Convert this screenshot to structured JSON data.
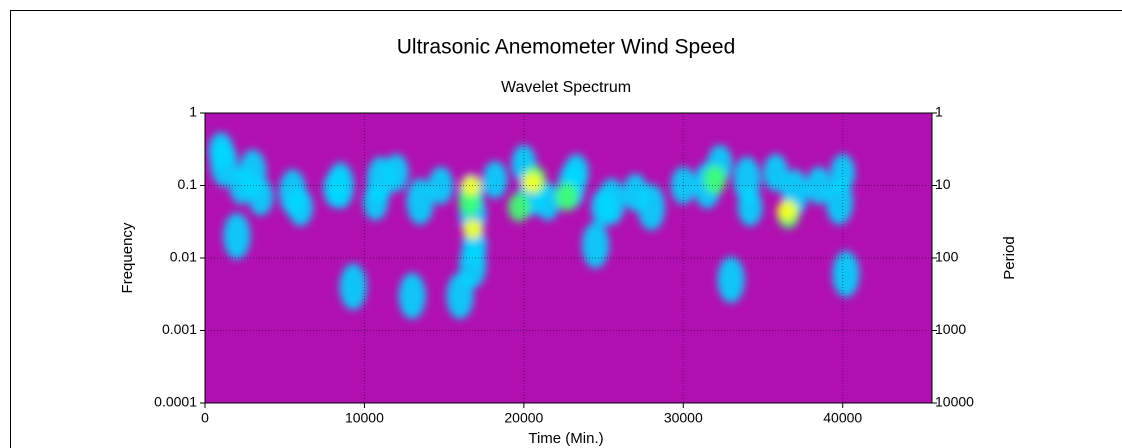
{
  "chart_data": {
    "type": "wavelet",
    "title": "Ultrasonic Anemometer Wind Speed",
    "subtitle": "Wavelet Spectrum",
    "x_label": "Time (Min.)",
    "y_label": "Frequency",
    "y2_label": "Period",
    "xlim": [
      0,
      45600
    ],
    "xticks": [
      0,
      10000,
      20000,
      30000,
      40000
    ],
    "ylim": [
      0.0001,
      1
    ],
    "yticks": [
      0.0001,
      0.001,
      0.01,
      0.1,
      1
    ],
    "y_scale": "log",
    "y2lim": [
      10000,
      1
    ],
    "y2ticks": [
      10000,
      1000,
      100,
      10,
      1
    ],
    "y2_scale": "log",
    "grid": true,
    "background": "#b010b0",
    "colormap": [
      "#d838d8",
      "#2038ff",
      "#00d8ff",
      "#40ff70",
      "#ffff20"
    ],
    "x": [
      1200,
      3000,
      5500,
      8500,
      11000,
      13500,
      16800,
      16800,
      16000,
      20500,
      23000,
      25500,
      28000,
      31500,
      34000,
      37000,
      39800,
      40200,
      9300,
      2000,
      24500,
      33000,
      13000,
      1000,
      2300,
      3500,
      6000,
      8200,
      10700,
      12000,
      14800,
      16700,
      18200,
      20000,
      21500,
      23300,
      25000,
      27000,
      30000,
      32300,
      34200,
      35800,
      38500,
      40000,
      16900,
      16600,
      20700,
      22700,
      36600,
      32000,
      19700,
      16700,
      20500,
      36500,
      16800
    ],
    "y": [
      0.2,
      0.15,
      0.08,
      0.1,
      0.12,
      0.06,
      0.04,
      0.008,
      0.003,
      0.08,
      0.1,
      0.06,
      0.05,
      0.1,
      0.12,
      0.08,
      0.06,
      0.006,
      0.004,
      0.02,
      0.015,
      0.005,
      0.003,
      0.3,
      0.1,
      0.07,
      0.05,
      0.09,
      0.06,
      0.15,
      0.1,
      0.08,
      0.12,
      0.2,
      0.06,
      0.15,
      0.05,
      0.08,
      0.1,
      0.2,
      0.05,
      0.15,
      0.1,
      0.15,
      0.015,
      0.06,
      0.12,
      0.07,
      0.04,
      0.12,
      0.05,
      0.1,
      0.11,
      0.045,
      0.025
    ],
    "values": [
      0.4,
      0.4,
      0.4,
      0.4,
      0.4,
      0.4,
      0.4,
      0.4,
      0.4,
      0.4,
      0.4,
      0.4,
      0.4,
      0.4,
      0.4,
      0.4,
      0.4,
      0.4,
      0.4,
      0.4,
      0.4,
      0.4,
      0.4,
      0.6,
      0.6,
      0.6,
      0.6,
      0.6,
      0.6,
      0.6,
      0.6,
      0.6,
      0.6,
      0.6,
      0.6,
      0.6,
      0.6,
      0.6,
      0.6,
      0.6,
      0.6,
      0.6,
      0.6,
      0.6,
      0.6,
      0.8,
      0.8,
      0.8,
      0.8,
      0.8,
      0.8,
      1,
      1,
      1,
      1
    ]
  }
}
